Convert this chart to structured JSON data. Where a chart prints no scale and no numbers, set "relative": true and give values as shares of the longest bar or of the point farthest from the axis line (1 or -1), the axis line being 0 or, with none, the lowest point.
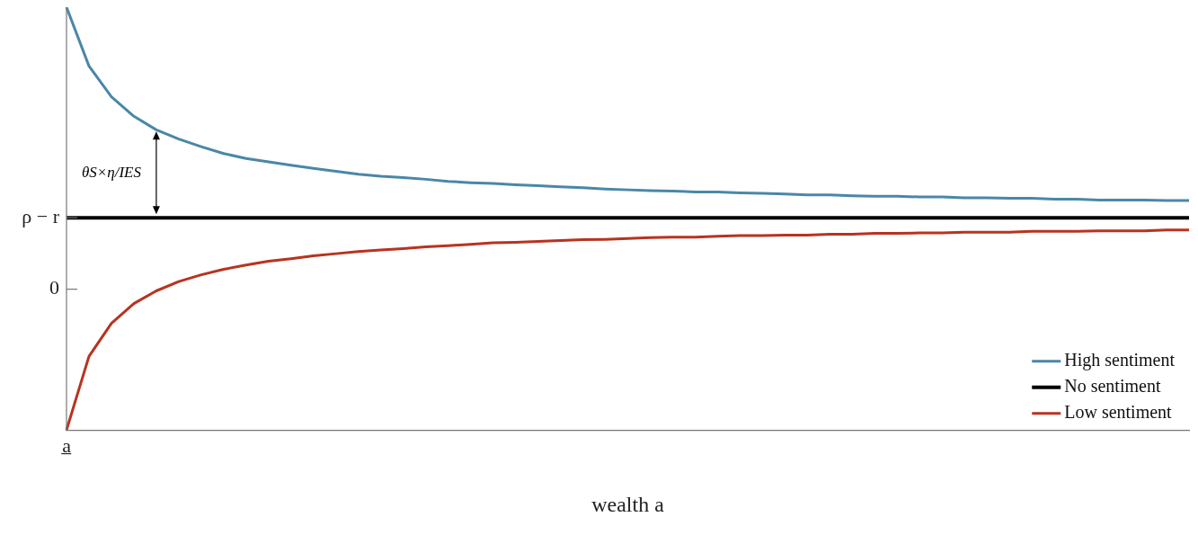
{
  "chart_data": {
    "type": "line",
    "xlabel": "wealth a",
    "categories": [
      null,
      null,
      null,
      null,
      null,
      null,
      null,
      null,
      null,
      null,
      null,
      null,
      null,
      null,
      null,
      null,
      null,
      null,
      null,
      null,
      null,
      null,
      null,
      null,
      null,
      null,
      null,
      null,
      null,
      null,
      null,
      null,
      null,
      null,
      null,
      null,
      null,
      null,
      null,
      null,
      null,
      null,
      null,
      null,
      null,
      null,
      null,
      null,
      null,
      null,
      null
    ],
    "series": [
      {
        "name": "High sentiment",
        "color": "#4a87a8",
        "values": [
          1.0,
          0.861,
          0.788,
          0.742,
          0.71,
          0.688,
          0.67,
          0.654,
          0.642,
          0.634,
          0.626,
          0.619,
          0.612,
          0.605,
          0.6,
          0.597,
          0.593,
          0.588,
          0.585,
          0.583,
          0.58,
          0.578,
          0.575,
          0.573,
          0.57,
          0.568,
          0.566,
          0.565,
          0.563,
          0.563,
          0.561,
          0.56,
          0.558,
          0.556,
          0.556,
          0.554,
          0.553,
          0.553,
          0.551,
          0.551,
          0.549,
          0.549,
          0.548,
          0.548,
          0.546,
          0.546,
          0.544,
          0.544,
          0.544,
          0.543,
          0.543
        ]
      },
      {
        "name": "No sentiment",
        "color": "#000000",
        "values": [
          0.502,
          0.502,
          0.502,
          0.502,
          0.502,
          0.502,
          0.502,
          0.502,
          0.502,
          0.502,
          0.502,
          0.502,
          0.502,
          0.502,
          0.502,
          0.502,
          0.502,
          0.502,
          0.502,
          0.502,
          0.502,
          0.502,
          0.502,
          0.502,
          0.502,
          0.502,
          0.502,
          0.502,
          0.502,
          0.502,
          0.502,
          0.502,
          0.502,
          0.502,
          0.502,
          0.502,
          0.502,
          0.502,
          0.502,
          0.502,
          0.502,
          0.502,
          0.502,
          0.502,
          0.502,
          0.502,
          0.502,
          0.502,
          0.502,
          0.502,
          0.502
        ]
      },
      {
        "name": "Low sentiment",
        "color": "#b83320",
        "values": [
          0.0,
          0.174,
          0.252,
          0.299,
          0.329,
          0.351,
          0.367,
          0.38,
          0.39,
          0.399,
          0.405,
          0.412,
          0.417,
          0.422,
          0.426,
          0.429,
          0.433,
          0.436,
          0.439,
          0.443,
          0.444,
          0.446,
          0.448,
          0.45,
          0.451,
          0.453,
          0.455,
          0.456,
          0.456,
          0.458,
          0.46,
          0.46,
          0.461,
          0.461,
          0.463,
          0.463,
          0.465,
          0.465,
          0.466,
          0.466,
          0.468,
          0.468,
          0.468,
          0.47,
          0.47,
          0.47,
          0.471,
          0.471,
          0.471,
          0.473,
          0.473
        ]
      }
    ],
    "relative": true,
    "ref_lines": [
      {
        "axis": "y",
        "value": 0.502,
        "label": "ρ − r"
      },
      {
        "axis": "y",
        "value": 0.333,
        "label": "0"
      }
    ],
    "annotations": [
      "a̲",
      "θS×η/IES"
    ],
    "grid": false,
    "legend": "bottom right",
    "marker": "none",
    "line_style": "solid"
  }
}
